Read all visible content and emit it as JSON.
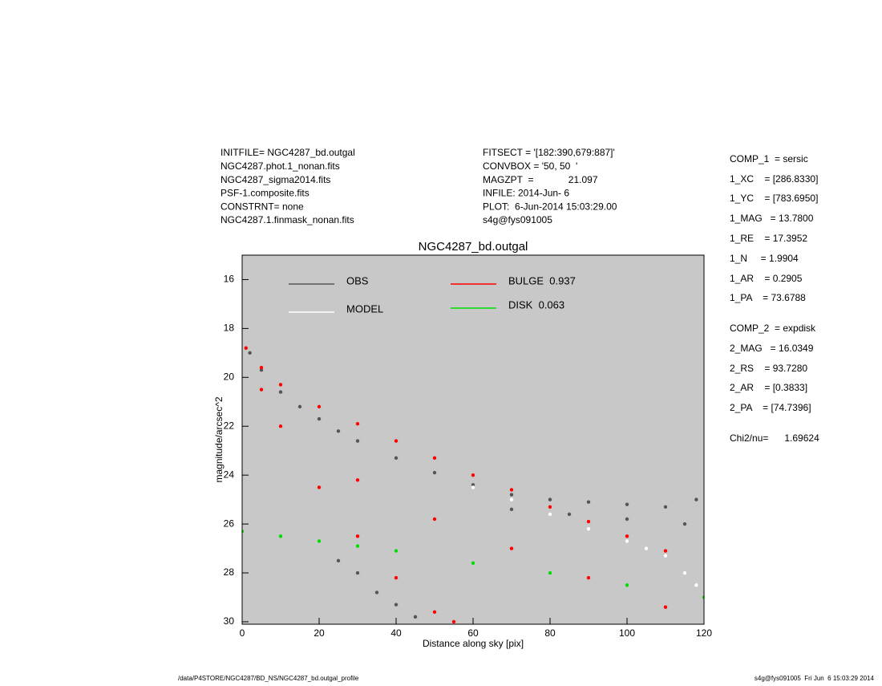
{
  "header": {
    "left": [
      "INITFILE= NGC4287_bd.outgal",
      "NGC4287.phot.1_nonan.fits",
      "NGC4287_sigma2014.fits",
      "PSF-1.composite.fits",
      "CONSTRNT= none",
      "NGC4287.1.finmask_nonan.fits"
    ],
    "middle": [
      "FITSECT = '[182:390,679:887]'",
      "CONVBOX = '50, 50  '",
      "MAGZPT  =             21.097",
      "INFILE: 2014-Jun- 6",
      "PLOT:  6-Jun-2014 15:03:29.00",
      "s4g@fys091005"
    ]
  },
  "parameters": [
    "COMP_1  = sersic",
    "1_XC    = [286.8330]",
    "1_YC    = [783.6950]",
    "1_MAG   = 13.7800",
    "1_RE    = 17.3952",
    "1_N     = 1.9904",
    "1_AR    = 0.2905",
    "1_PA    = 73.6788",
    "COMP_2  = expdisk",
    "2_MAG   = 16.0349",
    "2_RS    = 93.7280",
    "2_AR    = [0.3833]",
    "2_PA    = [74.7396]",
    "Chi2/nu=      1.69624"
  ],
  "footer": {
    "left": "/data/P4STORE/NGC4287/BD_NS/NGC4287_bd.outgal_profile",
    "right": "s4g@fys091005  Fri Jun  6 15:03:29 2014"
  },
  "chart_data": {
    "type": "scatter",
    "title": "NGC4287_bd.outgal",
    "x_label": "Distance along sky [pix]",
    "y_label": "magnitude/arcsec^2",
    "xlim": [
      0,
      120
    ],
    "ylim": [
      30.1,
      15
    ],
    "xticks": [
      0,
      20,
      40,
      60,
      80,
      100,
      120
    ],
    "yticks": [
      16,
      18,
      20,
      22,
      24,
      26,
      28,
      30
    ],
    "background": "#c8c8c8",
    "series": [
      {
        "name": "OBS",
        "color": "#555555",
        "x": [
          2,
          5,
          10,
          15,
          20,
          25,
          30,
          40,
          50,
          60,
          70,
          80,
          90,
          100,
          110,
          118,
          25,
          30,
          35,
          40,
          45,
          70,
          85,
          100,
          115
        ],
        "y": [
          19,
          19.7,
          20.6,
          21.2,
          21.7,
          22.2,
          22.6,
          23.3,
          23.9,
          24.4,
          24.8,
          25,
          25.1,
          25.2,
          25.3,
          25,
          27.5,
          28,
          28.8,
          29.3,
          29.8,
          25.4,
          25.6,
          25.8,
          26
        ]
      },
      {
        "name": "MODEL",
        "color": "#ffffff",
        "x": [
          60,
          70,
          80,
          90,
          100,
          105,
          110,
          115,
          118
        ],
        "y": [
          24.5,
          25,
          25.6,
          26.2,
          26.7,
          27,
          27.3,
          28,
          28.5
        ]
      },
      {
        "name": "BULGE  0.937",
        "color": "#ff0000",
        "x": [
          1,
          5,
          10,
          20,
          30,
          40,
          50,
          60,
          70,
          80,
          90,
          100,
          110,
          5,
          10,
          20,
          30,
          40,
          50,
          55,
          30,
          50,
          70,
          90,
          110
        ],
        "y": [
          18.8,
          19.6,
          20.3,
          21.2,
          21.9,
          22.6,
          23.3,
          24,
          24.6,
          25.3,
          25.9,
          26.5,
          27.1,
          20.5,
          22,
          24.5,
          26.5,
          28.2,
          29.6,
          30,
          24.2,
          25.8,
          27,
          28.2,
          29.4
        ]
      },
      {
        "name": "DISK  0.063",
        "color": "#00dd00",
        "x": [
          0,
          10,
          20,
          30,
          40,
          60,
          80,
          100,
          120
        ],
        "y": [
          26.3,
          26.5,
          26.7,
          26.9,
          27.1,
          27.6,
          28,
          28.5,
          29
        ]
      }
    ]
  }
}
